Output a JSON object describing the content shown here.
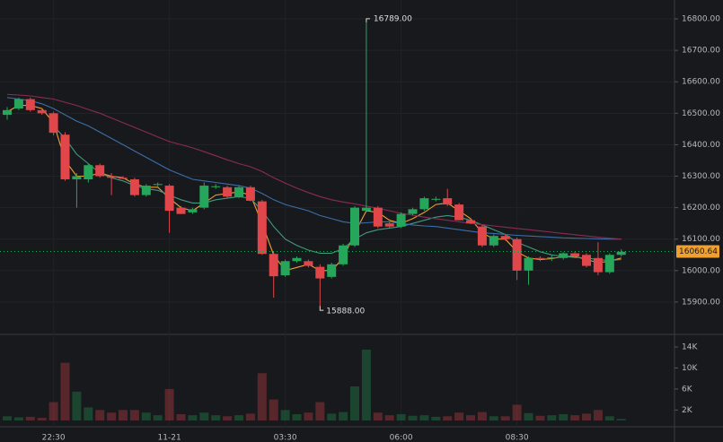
{
  "chart_data": {
    "type": "candlestick",
    "categories": [
      null,
      null,
      null,
      null,
      "22:30",
      null,
      null,
      null,
      null,
      null,
      null,
      null,
      null,
      null,
      "11-21",
      null,
      null,
      null,
      null,
      null,
      null,
      null,
      null,
      null,
      "03:30",
      null,
      null,
      null,
      null,
      null,
      null,
      null,
      null,
      null,
      "06:00",
      null,
      null,
      null,
      null,
      null,
      null,
      null,
      null,
      null,
      "08:30",
      null,
      null,
      null,
      null,
      null,
      null,
      null,
      null,
      null
    ],
    "open": [
      16495,
      16515,
      16545,
      16510,
      16500,
      16432,
      16290,
      16290,
      16335,
      16300,
      16295,
      16290,
      16240,
      16272,
      16270,
      16200,
      16185,
      16200,
      16265,
      16265,
      16235,
      16265,
      16220,
      16053,
      15985,
      16030,
      16030,
      16012,
      15980,
      16020,
      16080,
      16190,
      16200,
      16150,
      16140,
      16180,
      16195,
      16225,
      16230,
      16210,
      16160,
      16140,
      16080,
      16110,
      16100,
      16000,
      16040,
      16040,
      16040,
      16055,
      16050,
      16040,
      15995,
      16050
    ],
    "high": [
      16520,
      16550,
      16550,
      16515,
      16505,
      16440,
      16310,
      16340,
      16340,
      16310,
      16300,
      16295,
      16275,
      16280,
      16275,
      16205,
      16200,
      16280,
      16275,
      16270,
      16270,
      16270,
      16225,
      16060,
      16035,
      16045,
      16035,
      16020,
      16025,
      16085,
      16205,
      16789,
      16205,
      16155,
      16185,
      16200,
      16235,
      16235,
      16260,
      16215,
      16165,
      16145,
      16115,
      16115,
      16105,
      16045,
      16045,
      16048,
      16058,
      16060,
      16055,
      16090,
      16055,
      16068
    ],
    "low": [
      16480,
      16510,
      16505,
      16495,
      16430,
      16285,
      16200,
      16280,
      16295,
      16240,
      16290,
      16235,
      16235,
      16268,
      16120,
      16180,
      16180,
      16195,
      16260,
      16230,
      16230,
      16220,
      16050,
      15914,
      15980,
      16025,
      16010,
      15888,
      15975,
      16015,
      16075,
      16185,
      16135,
      16135,
      16135,
      16175,
      16190,
      16220,
      16205,
      16160,
      16148,
      16075,
      16075,
      16095,
      15970,
      15955,
      16030,
      16030,
      16035,
      16040,
      16010,
      15985,
      15990,
      16045
    ],
    "close": [
      16510,
      16545,
      16510,
      16500,
      16438,
      16290,
      16300,
      16335,
      16300,
      16295,
      16292,
      16240,
      16270,
      16275,
      16190,
      16180,
      16195,
      16270,
      16268,
      16235,
      16265,
      16222,
      16053,
      15982,
      16030,
      16040,
      16015,
      15975,
      16020,
      16080,
      16200,
      16200,
      16140,
      16140,
      16180,
      16195,
      16230,
      16228,
      16210,
      16160,
      16150,
      16080,
      16110,
      16100,
      16000,
      16040,
      16038,
      16042,
      16055,
      16045,
      16015,
      15995,
      16050,
      16060
    ],
    "volume": [
      800,
      600,
      700,
      500,
      3500,
      11000,
      5500,
      2500,
      2000,
      1500,
      2000,
      2000,
      1500,
      1000,
      6000,
      1200,
      1000,
      1500,
      1000,
      800,
      1000,
      1300,
      9000,
      4000,
      2000,
      1200,
      1500,
      3500,
      1300,
      1600,
      6500,
      13500,
      1500,
      1000,
      1200,
      900,
      1000,
      700,
      800,
      1500,
      1000,
      1600,
      800,
      800,
      3000,
      1400,
      900,
      1000,
      1200,
      1000,
      1300,
      2000,
      800,
      300
    ],
    "series": [
      {
        "color": "#f0a030",
        "values": [
          16505,
          16525,
          16525,
          16515,
          16470,
          16350,
          16300,
          16300,
          16310,
          16300,
          16295,
          16275,
          16265,
          16265,
          16230,
          16200,
          16190,
          16215,
          16240,
          16245,
          16250,
          16240,
          16150,
          16050,
          16000,
          16010,
          16020,
          16000,
          16000,
          16040,
          16120,
          16190,
          16185,
          16160,
          16150,
          16165,
          16185,
          16210,
          16215,
          16190,
          16165,
          16120,
          16100,
          16100,
          16060,
          16040,
          16035,
          16038,
          16045,
          16045,
          16035,
          16025,
          16030,
          16040
        ]
      },
      {
        "color": "#3f9a82",
        "values": [
          null,
          null,
          null,
          null,
          16460,
          16420,
          16370,
          16340,
          16310,
          16295,
          16285,
          16270,
          16260,
          16255,
          16240,
          16225,
          16215,
          16215,
          16225,
          16230,
          16235,
          16230,
          16190,
          16140,
          16100,
          16080,
          16065,
          16055,
          16055,
          16070,
          16100,
          16120,
          16130,
          16135,
          16140,
          16150,
          16160,
          16170,
          16175,
          16170,
          16160,
          16145,
          16130,
          16115,
          16090,
          16075,
          16060,
          16050,
          16045,
          16042,
          16040,
          16035,
          16032,
          16035
        ]
      },
      {
        "color": "#3a6fa8",
        "values": [
          16550,
          16545,
          16540,
          16530,
          16515,
          16495,
          16475,
          16460,
          16440,
          16420,
          16400,
          16380,
          16360,
          16340,
          16320,
          16305,
          16290,
          16285,
          16280,
          16275,
          16270,
          16262,
          16245,
          16225,
          16210,
          16200,
          16190,
          16175,
          16165,
          16155,
          16150,
          16152,
          16155,
          16155,
          16150,
          16145,
          16142,
          16140,
          16135,
          16130,
          16125,
          16120,
          16118,
          16115,
          16112,
          16110,
          16108,
          16106,
          16104,
          16103,
          16102,
          16101,
          16100,
          16100
        ]
      },
      {
        "color": "#8a2c52",
        "values": [
          16560,
          16558,
          16555,
          16550,
          16545,
          16535,
          16525,
          16512,
          16500,
          16485,
          16470,
          16455,
          16440,
          16425,
          16410,
          16400,
          16390,
          16378,
          16365,
          16352,
          16340,
          16330,
          16315,
          16295,
          16278,
          16262,
          16248,
          16235,
          16225,
          16218,
          16212,
          16205,
          16198,
          16190,
          16182,
          16176,
          16170,
          16165,
          16160,
          16155,
          16150,
          16146,
          16142,
          16138,
          16134,
          16130,
          16126,
          16122,
          16118,
          16114,
          16110,
          16106,
          16103,
          16100
        ]
      }
    ],
    "up_color": "#26a65b",
    "down_color": "#e0464a",
    "ylim": [
      15800,
      16860
    ],
    "yticks": [
      {
        "value": 15900,
        "label": "15900.00"
      },
      {
        "value": 16000,
        "label": "16000.00"
      },
      {
        "value": 16100,
        "label": "16100.00"
      },
      {
        "value": 16200,
        "label": "16200.00"
      },
      {
        "value": 16300,
        "label": "16300.00"
      },
      {
        "value": 16400,
        "label": "16400.00"
      },
      {
        "value": 16500,
        "label": "16500.00"
      },
      {
        "value": 16600,
        "label": "16600.00"
      },
      {
        "value": 16700,
        "label": "16700.00"
      },
      {
        "value": 16800,
        "label": "16800.00"
      }
    ],
    "y2lim": [
      0,
      16400
    ],
    "y2ticks": [
      {
        "value": 2000,
        "label": "2K"
      },
      {
        "value": 6000,
        "label": "6K"
      },
      {
        "value": 10000,
        "label": "10K"
      },
      {
        "value": 14000,
        "label": "14K"
      }
    ],
    "high_label": "16789.00",
    "low_label": "15888.00",
    "last_price": 16060.64,
    "grid": true
  }
}
